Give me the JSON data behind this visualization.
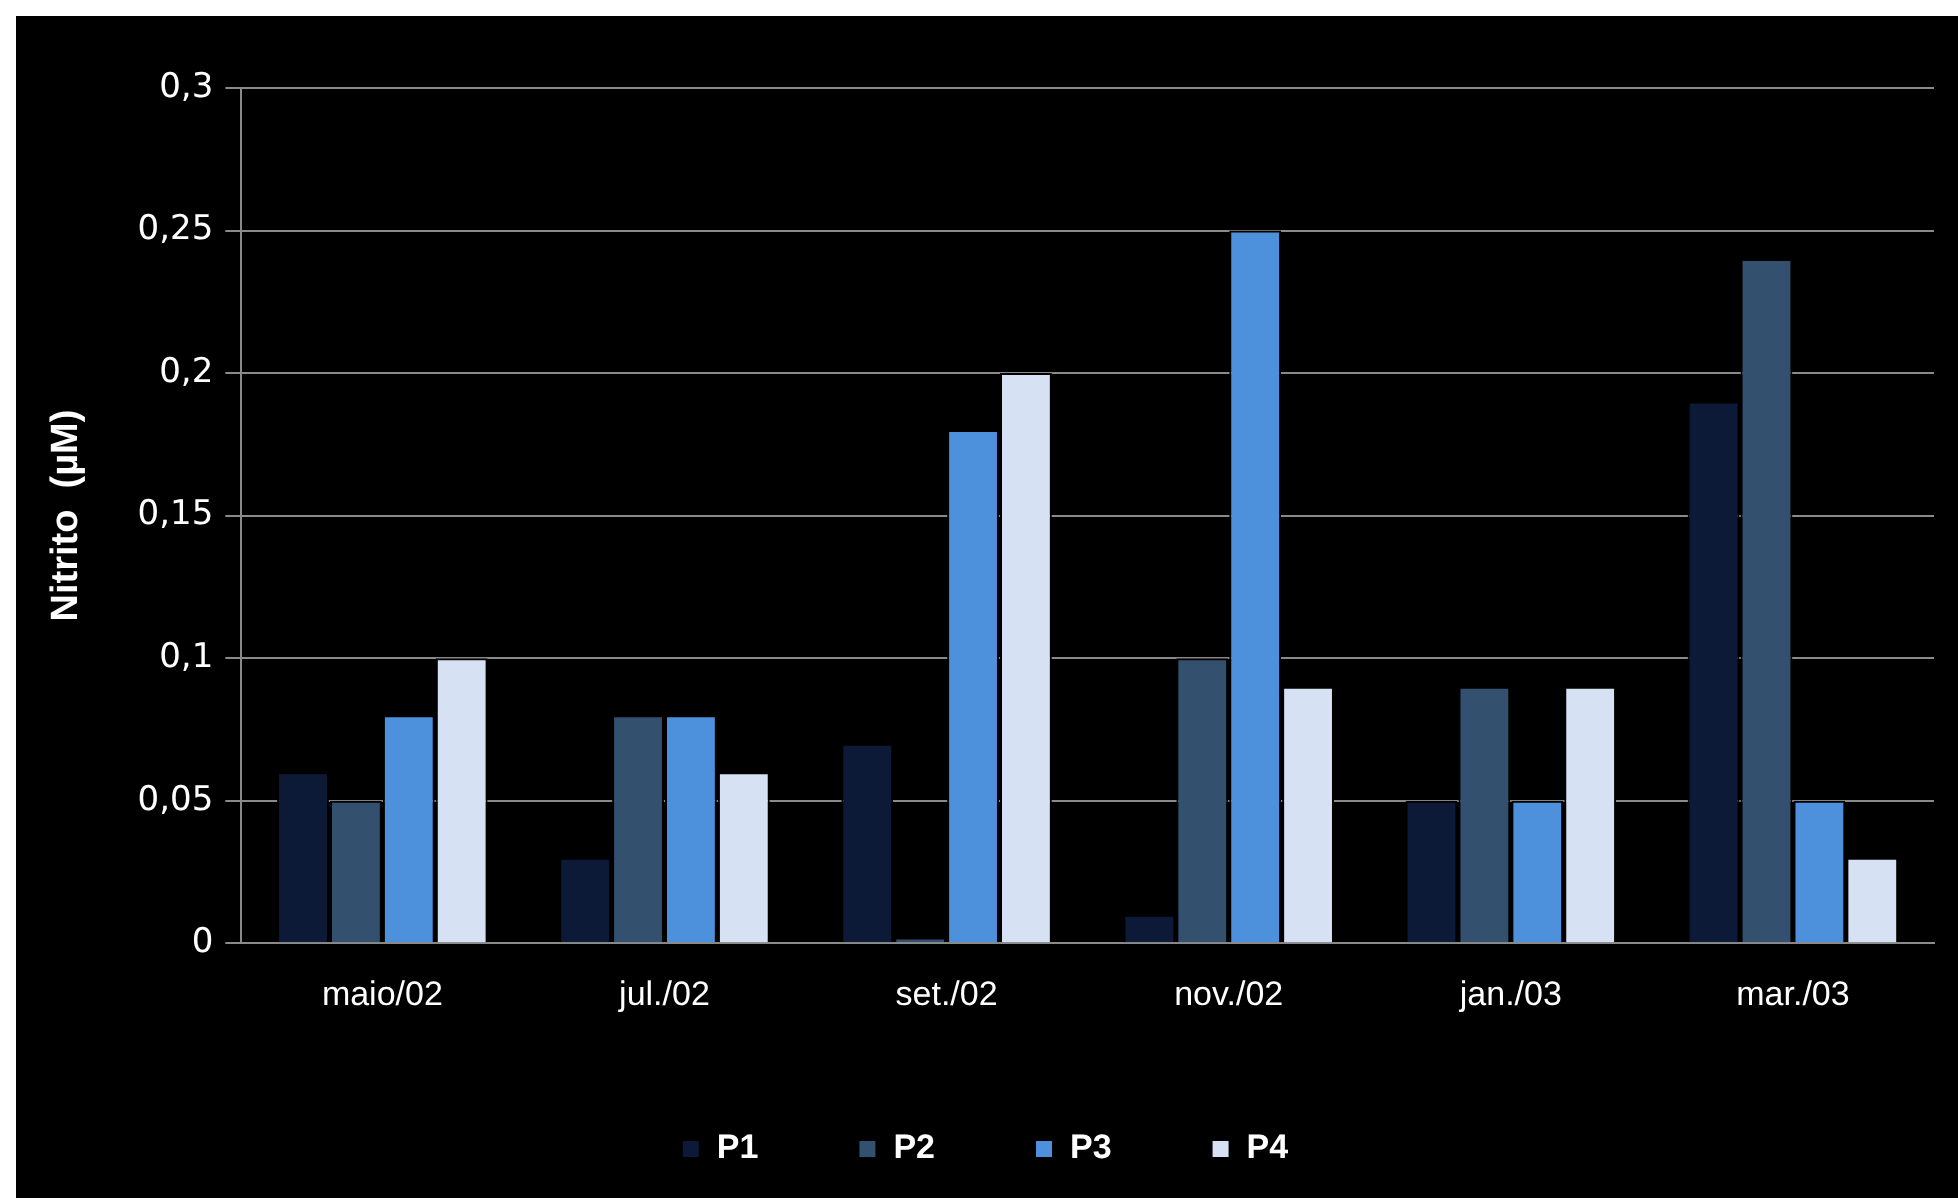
{
  "chart_data": {
    "type": "bar",
    "ylabel": "Nitrito  (µM)",
    "categories": [
      "maio/02",
      "jul./02",
      "set./02",
      "nov./02",
      "jan./03",
      "mar./03"
    ],
    "series": [
      {
        "name": "P1",
        "color": "#0c1a38",
        "values": [
          0.06,
          0.03,
          0.07,
          0.01,
          0.05,
          0.19
        ]
      },
      {
        "name": "P2",
        "color": "#34506f",
        "values": [
          0.05,
          0.08,
          0.002,
          0.1,
          0.09,
          0.24
        ]
      },
      {
        "name": "P3",
        "color": "#4d90db",
        "values": [
          0.08,
          0.08,
          0.18,
          0.25,
          0.05,
          0.05
        ]
      },
      {
        "name": "P4",
        "color": "#d6e2f3",
        "values": [
          0.1,
          0.06,
          0.2,
          0.09,
          0.09,
          0.03
        ]
      }
    ],
    "ylim": [
      0,
      0.3
    ],
    "yticks": [
      0,
      {
        "value": 0.05,
        "label": "0,05"
      },
      {
        "value": 0.1,
        "label": "0,1"
      },
      {
        "value": 0.15,
        "label": "0,15"
      },
      {
        "value": 0.2,
        "label": "0,2"
      },
      {
        "value": 0.25,
        "label": "0,25"
      },
      {
        "value": 0.3,
        "label": "0,3"
      }
    ],
    "grid": "y",
    "legend": "bottom"
  }
}
